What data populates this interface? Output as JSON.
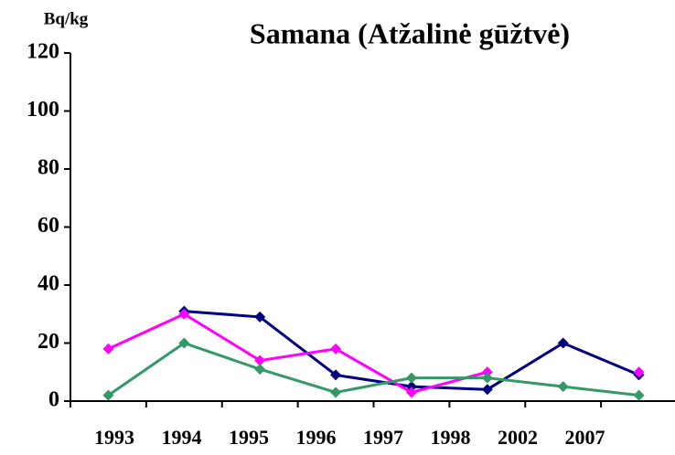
{
  "chart_data": {
    "type": "line",
    "title": "Samana (Atžalinė gūžtvė)",
    "y_label": "Bq/kg",
    "categories": [
      "1993",
      "1994",
      "1995",
      "1996",
      "1997",
      "1998",
      "2002",
      "2007"
    ],
    "series": [
      {
        "name": "navy",
        "color": "#000080",
        "values": [
          null,
          31,
          29,
          9,
          5,
          4,
          20,
          9
        ]
      },
      {
        "name": "magenta",
        "color": "#ff00ff",
        "values": [
          18,
          30,
          14,
          18,
          3,
          10,
          null,
          10
        ]
      },
      {
        "name": "green",
        "color": "#339966",
        "values": [
          2,
          20,
          11,
          3,
          8,
          8,
          5,
          2
        ]
      }
    ],
    "ylim": [
      0,
      120
    ],
    "yticks": [
      0,
      20,
      40,
      60,
      80,
      100,
      120
    ]
  }
}
